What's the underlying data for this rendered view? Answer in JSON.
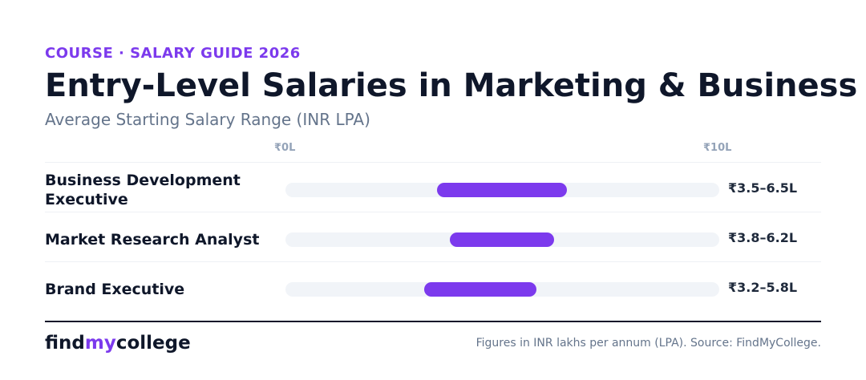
{
  "header": {
    "eyebrow": "COURSE · SALARY GUIDE 2026",
    "title": "Entry-Level Salaries in Marketing & Business",
    "subtitle": "Average Starting Salary Range (INR LPA)"
  },
  "axis": {
    "min_label": "₹0L",
    "max_label": "₹10L"
  },
  "chart_data": {
    "type": "bar",
    "subtype": "range",
    "title": "Entry-Level Salaries in Marketing & Business",
    "subtitle": "Average Starting Salary Range (INR LPA)",
    "xlim": [
      0,
      10
    ],
    "categories": [
      "Business Development Executive",
      "Market Research Analyst",
      "Brand Executive"
    ],
    "ranges": [
      [
        3.5,
        6.5
      ],
      [
        3.8,
        6.2
      ],
      [
        3.2,
        5.8
      ]
    ],
    "value_labels": [
      "₹3.5–6.5L",
      "₹3.8–6.2L",
      "₹3.2–5.8L"
    ],
    "bar_color": "#7c3aed",
    "track_color": "#f1f4f8"
  },
  "footer": {
    "logo_part1": "find",
    "logo_part2": "my",
    "logo_part3": "college",
    "source": "Figures in INR lakhs per annum (LPA). Source: FindMyCollege."
  },
  "colors": {
    "accent": "#7c3aed",
    "heading": "#0f172a",
    "muted": "#64748b"
  }
}
